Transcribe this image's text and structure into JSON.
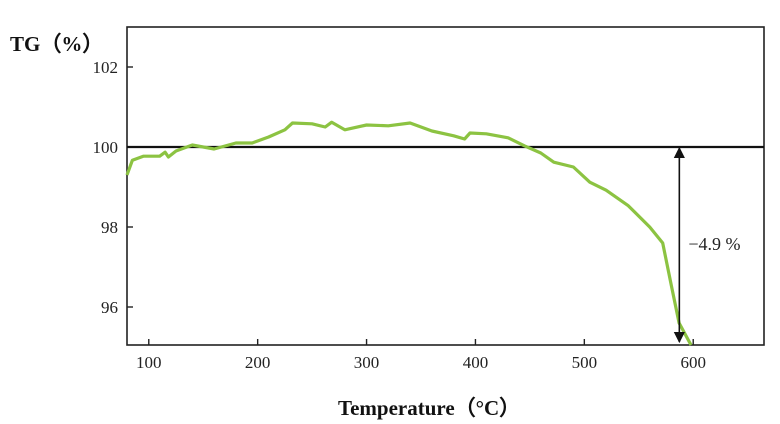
{
  "chart_data": {
    "type": "line",
    "title": "",
    "xlabel": "Temperature（°C）",
    "ylabel": "TG（%）",
    "xlim": [
      80,
      665
    ],
    "ylim": [
      95.05,
      103.0
    ],
    "xticks": [
      100,
      200,
      300,
      400,
      500,
      600
    ],
    "yticks": [
      96,
      98,
      100,
      102
    ],
    "grid": false,
    "legend": null,
    "reference_line": {
      "y": 100,
      "color": "#111111"
    },
    "annotation": {
      "text": "−4.9 %",
      "x": 590,
      "y_from": 100,
      "y_to": 95.1
    },
    "series": [
      {
        "name": "TG",
        "color": "#8cc342",
        "x": [
          80,
          85,
          95,
          110,
          115,
          118,
          125,
          140,
          160,
          180,
          195,
          210,
          225,
          232,
          250,
          262,
          268,
          280,
          300,
          320,
          340,
          360,
          380,
          390,
          395,
          410,
          430,
          445,
          460,
          472,
          490,
          505,
          520,
          540,
          560,
          572,
          580,
          587,
          598
        ],
        "values": [
          99.3,
          99.67,
          99.77,
          99.77,
          99.87,
          99.75,
          99.9,
          100.05,
          99.95,
          100.1,
          100.1,
          100.25,
          100.43,
          100.6,
          100.58,
          100.5,
          100.62,
          100.43,
          100.55,
          100.53,
          100.6,
          100.4,
          100.28,
          100.2,
          100.35,
          100.33,
          100.23,
          100.03,
          99.85,
          99.62,
          99.5,
          99.12,
          98.92,
          98.54,
          98.0,
          97.6,
          96.53,
          95.6,
          95.05
        ]
      }
    ]
  }
}
